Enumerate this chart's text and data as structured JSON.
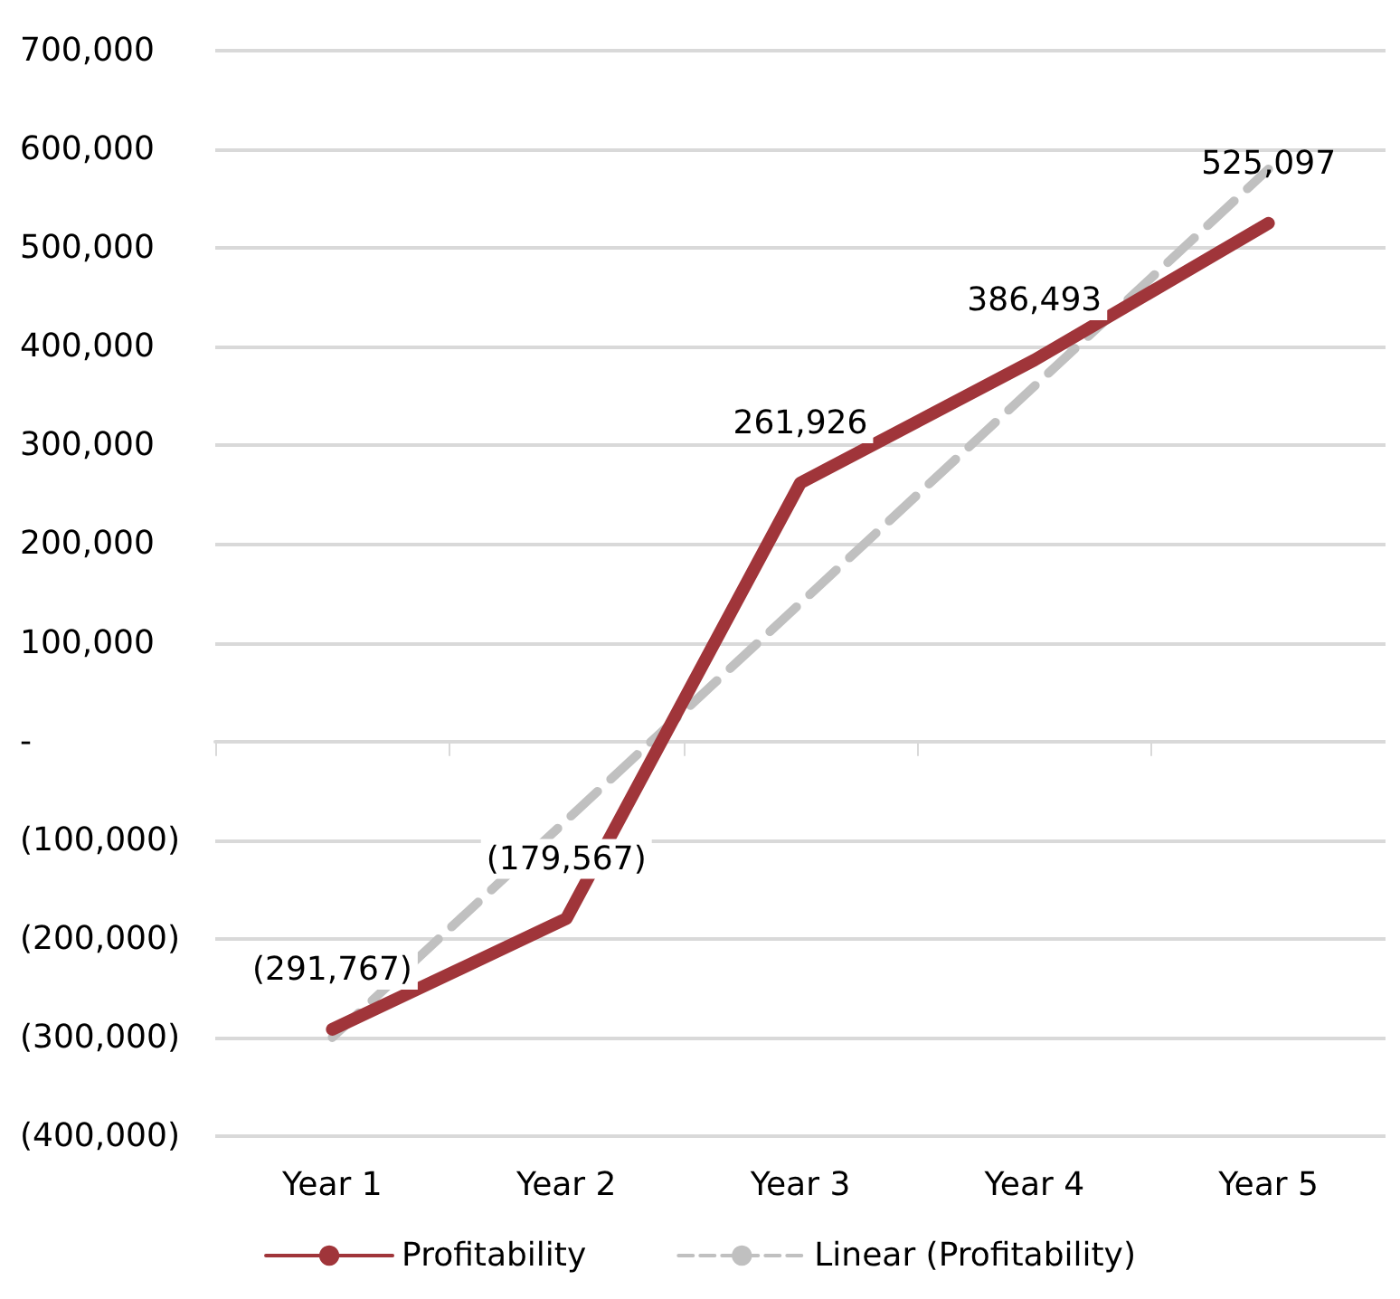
{
  "chart_data": {
    "type": "line",
    "categories": [
      "Year 1",
      "Year 2",
      "Year 3",
      "Year 4",
      "Year 5"
    ],
    "series": [
      {
        "name": "Profitability",
        "color": "#a0353a",
        "values": [
          -291767,
          -179567,
          261926,
          386493,
          525097
        ],
        "value_labels": [
          "(291,767)",
          "(179,567)",
          "261,926",
          "386,493",
          "525,097"
        ]
      },
      {
        "name": "Linear (Profitability)",
        "color": "#c0c0c0",
        "line_style": "dashed",
        "values": [
          -300000,
          -80000,
          140000,
          360000,
          580000
        ]
      }
    ],
    "ylim": [
      -400000,
      700000
    ],
    "yticks": [
      {
        "value": -400000,
        "label": "(400,000)"
      },
      {
        "value": -300000,
        "label": "(300,000)"
      },
      {
        "value": -200000,
        "label": "(200,000)"
      },
      {
        "value": -100000,
        "label": "(100,000)"
      },
      {
        "value": 0,
        "label": "-"
      },
      {
        "value": 100000,
        "label": "100,000"
      },
      {
        "value": 200000,
        "label": "200,000"
      },
      {
        "value": 300000,
        "label": "300,000"
      },
      {
        "value": 400000,
        "label": "400,000"
      },
      {
        "value": 500000,
        "label": "500,000"
      },
      {
        "value": 600000,
        "label": "600,000"
      },
      {
        "value": 700000,
        "label": "700,000"
      }
    ],
    "grid": "y",
    "legend": "bottom",
    "marker": "none"
  }
}
